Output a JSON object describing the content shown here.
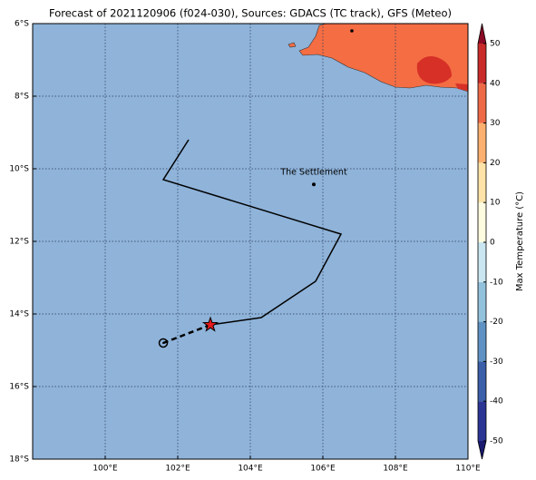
{
  "chart_data": {
    "type": "map",
    "title": "Forecast of 2021120906 (f024-030), Sources: GDACS (TC track), GFS (Meteo)",
    "xlim": [
      98,
      110
    ],
    "ylim": [
      -18,
      -6
    ],
    "xticks": [
      {
        "value": 100,
        "label": "100°E"
      },
      {
        "value": 102,
        "label": "102°E"
      },
      {
        "value": 104,
        "label": "104°E"
      },
      {
        "value": 106,
        "label": "106°E"
      },
      {
        "value": 108,
        "label": "108°E"
      },
      {
        "value": 110,
        "label": "110°E"
      }
    ],
    "yticks": [
      {
        "value": -6,
        "label": "6°S"
      },
      {
        "value": -8,
        "label": "8°S"
      },
      {
        "value": -10,
        "label": "10°S"
      },
      {
        "value": -12,
        "label": "12°S"
      },
      {
        "value": -14,
        "label": "14°S"
      },
      {
        "value": -16,
        "label": "16°S"
      },
      {
        "value": -18,
        "label": "18°S"
      }
    ],
    "grid": true,
    "ocean_color": "#8fb3d9",
    "track": {
      "lon": [
        102.3,
        101.6,
        106.5,
        105.8,
        104.3,
        102.9
      ],
      "lat": [
        -9.2,
        -10.3,
        -11.8,
        -13.1,
        -14.1,
        -14.3
      ],
      "color": "#000000"
    },
    "forecast": {
      "lon": [
        102.9,
        101.6
      ],
      "lat": [
        -14.3,
        -14.8
      ]
    },
    "settlement": {
      "name": "The Settlement",
      "lon": 105.75,
      "lat": -10.43
    },
    "colorbar": {
      "label": "Max Temperature (°C)",
      "levels": [
        -50,
        -40,
        -30,
        -20,
        -10,
        0,
        10,
        20,
        30,
        40,
        50
      ],
      "colors": [
        "#2b3594",
        "#3b5fa8",
        "#5f92c2",
        "#92c1dc",
        "#c9e6f0",
        "#fdfbe0",
        "#fde3a7",
        "#fbb070",
        "#ee6a47",
        "#c92b2a"
      ],
      "under_color": "#1a1a6e",
      "over_color": "#8b0a26",
      "ticks": [
        50,
        40,
        30,
        20,
        10,
        0,
        -10,
        -20,
        -30,
        -40,
        -50
      ]
    }
  }
}
